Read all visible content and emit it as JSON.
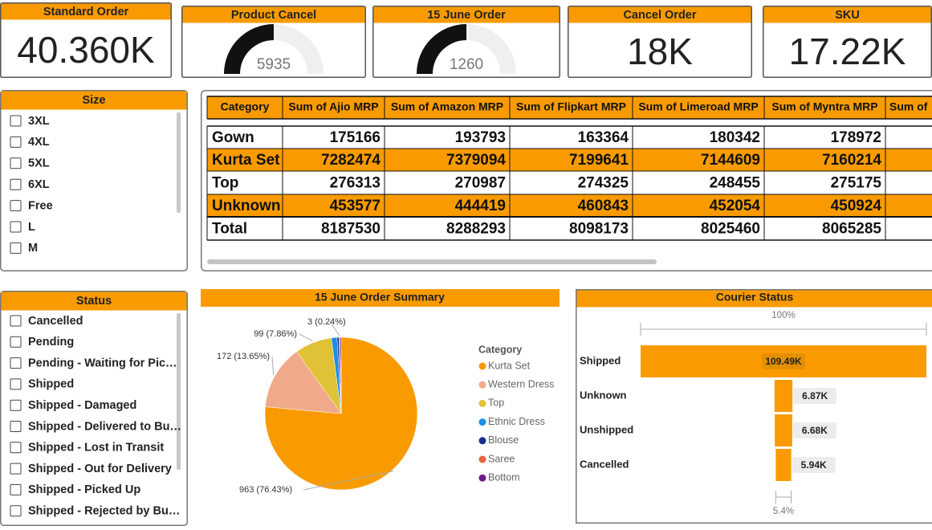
{
  "cards": [
    {
      "type": "card",
      "title": "Standard Order",
      "value": "40.360K"
    },
    {
      "type": "gauge",
      "title": "Product Cancel",
      "value": 5935,
      "min": 0,
      "max": 11870
    },
    {
      "type": "gauge",
      "title": "15 June Order",
      "value": 1260,
      "min": 0,
      "max": 2520
    },
    {
      "type": "card",
      "title": "Cancel Order",
      "value": "18K"
    },
    {
      "type": "card",
      "title": "SKU",
      "value": "17.22K"
    }
  ],
  "size_slicer": {
    "title": "Size",
    "items": [
      "3XL",
      "4XL",
      "5XL",
      "6XL",
      "Free",
      "L",
      "M"
    ]
  },
  "status_slicer": {
    "title": "Status",
    "items": [
      "Cancelled",
      "Pending",
      "Pending - Waiting for Pic…",
      "Shipped",
      "Shipped - Damaged",
      "Shipped - Delivered to Bu…",
      "Shipped - Lost in Transit",
      "Shipped - Out for Delivery",
      "Shipped - Picked Up",
      "Shipped - Rejected by Bu…"
    ]
  },
  "table": {
    "columns": [
      "Category",
      "Sum of Ajio MRP",
      "Sum of Amazon MRP",
      "Sum of Flipkart MRP",
      "Sum of Limeroad MRP",
      "Sum of Myntra MRP",
      "Sum of"
    ],
    "rows": [
      [
        "Gown",
        175166,
        193793,
        163364,
        180342,
        178972
      ],
      [
        "Kurta Set",
        7282474,
        7379094,
        7199641,
        7144609,
        7160214
      ],
      [
        "Top",
        276313,
        270987,
        274325,
        248455,
        275175
      ],
      [
        "Unknown",
        453577,
        444419,
        460843,
        452054,
        450924
      ]
    ],
    "total": [
      "Total",
      8187530,
      8288293,
      8098173,
      8025460,
      8065285
    ]
  },
  "chart_data": [
    {
      "type": "pie",
      "title": "15 June Order Summary",
      "legend_title": "Category",
      "legend": "right",
      "categories": [
        "Kurta Set",
        "Western Dress",
        "Top",
        "Ethnic Dress",
        "Blouse",
        "Saree",
        "Bottom"
      ],
      "values": [
        963,
        172,
        99,
        15,
        5,
        3,
        3
      ],
      "value_labels": [
        "963 (76.43%)",
        "172 (13.65%)",
        "99 (7.86%)",
        null,
        null,
        "3 (0.24%)",
        null
      ],
      "colors": [
        "#f99b00",
        "#f0a98a",
        "#e0c236",
        "#1a8fe6",
        "#15308c",
        "#e8633a",
        "#6b1b8c"
      ]
    },
    {
      "type": "funnel",
      "title": "Courier Status",
      "categories": [
        "Shipped",
        "Unknown",
        "Unshipped",
        "Cancelled"
      ],
      "values": [
        109490,
        6870,
        6680,
        5940
      ],
      "value_labels": [
        "109.49K",
        "6.87K",
        "6.68K",
        "5.94K"
      ],
      "color": "#f99b00",
      "top_label": "100%",
      "bottom_label": "5.4%"
    }
  ]
}
